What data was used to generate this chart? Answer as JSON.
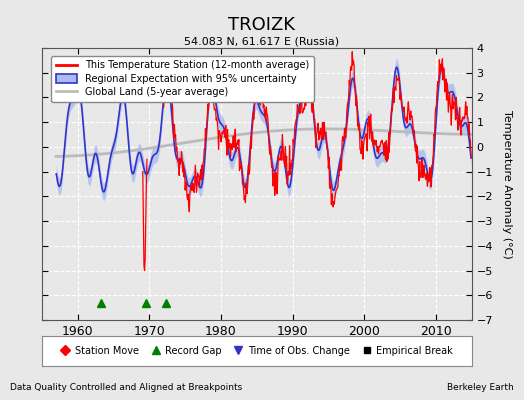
{
  "title": "TROIZK",
  "subtitle": "54.083 N, 61.617 E (Russia)",
  "ylabel": "Temperature Anomaly (°C)",
  "xlabel_left": "Data Quality Controlled and Aligned at Breakpoints",
  "xlabel_right": "Berkeley Earth",
  "ylim": [
    -7,
    4
  ],
  "yticks": [
    -7,
    -6,
    -5,
    -4,
    -3,
    -2,
    -1,
    0,
    1,
    2,
    3,
    4
  ],
  "xlim": [
    1955,
    2015
  ],
  "xticks": [
    1960,
    1970,
    1980,
    1990,
    2000,
    2010
  ],
  "station_color": "#FF0000",
  "regional_color": "#3333CC",
  "regional_fill_color": "#AABBEE",
  "global_land_color": "#BBBBBB",
  "background_color": "#E8E8E8",
  "plot_bg_color": "#E8E8E8",
  "legend_box_color": "#FFFFFF",
  "record_gaps": [
    1963.2,
    1969.5,
    1972.3
  ],
  "station_moves": [],
  "time_obs_changes": [],
  "empirical_breaks": []
}
